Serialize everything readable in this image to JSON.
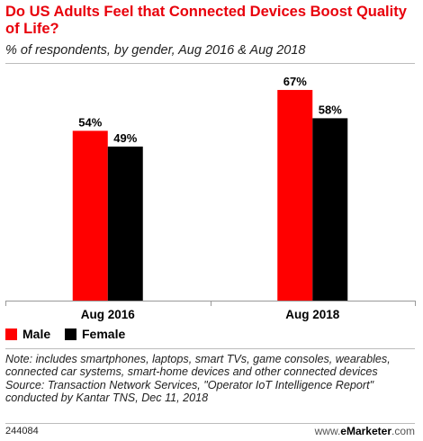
{
  "header": {
    "title": "Do US Adults Feel that Connected Devices Boost Quality of Life?",
    "subtitle": "% of respondents, by gender, Aug 2016 & Aug 2018"
  },
  "colors": {
    "male": "#ff0000",
    "female": "#000000",
    "title": "#e8000b"
  },
  "chart_data": {
    "type": "bar",
    "title": "Do US Adults Feel that Connected Devices Boost Quality of Life?",
    "subtitle": "% of respondents, by gender, Aug 2016 & Aug 2018",
    "categories": [
      "Aug 2016",
      "Aug 2018"
    ],
    "series": [
      {
        "name": "Male",
        "values": [
          54,
          67
        ],
        "labels": [
          "54%",
          "67%"
        ],
        "color": "#ff0000"
      },
      {
        "name": "Female",
        "values": [
          49,
          58
        ],
        "labels": [
          "49%",
          "58%"
        ],
        "color": "#000000"
      }
    ],
    "ylim": [
      0,
      75
    ],
    "grid": false,
    "legend_position": "bottom-left"
  },
  "legend": [
    {
      "label": "Male",
      "color": "#ff0000"
    },
    {
      "label": "Female",
      "color": "#000000"
    }
  ],
  "footer": {
    "note": "Note: includes smartphones, laptops, smart TVs, game consoles, wearables, connected car systems, smart-home devices and other connected devices",
    "source": "Source: Transaction Network Services, \"Operator IoT Intelligence Report\" conducted by Kantar TNS, Dec 11, 2018",
    "id": "244084",
    "brand_prefix": "www.",
    "brand_name": "eMarketer",
    "brand_suffix": ".com"
  }
}
